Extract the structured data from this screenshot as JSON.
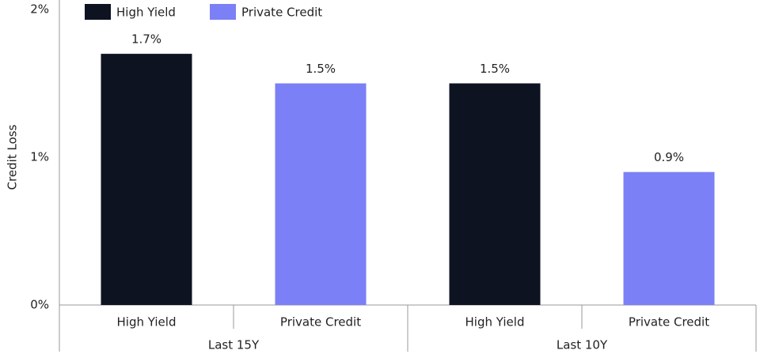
{
  "chart_data": {
    "type": "bar",
    "y_label": "Credit Loss",
    "categories": [
      "Last 15Y",
      "Last 10Y"
    ],
    "series": [
      {
        "name": "High Yield",
        "color": "#0e1322",
        "values": [
          1.7,
          1.5
        ],
        "value_labels": [
          "1.7%",
          "1.5%"
        ]
      },
      {
        "name": "Private Credit",
        "color": "#7b80f6",
        "values": [
          1.5,
          0.9
        ],
        "value_labels": [
          "1.5%",
          "0.9%"
        ]
      }
    ],
    "ylim": [
      0,
      2
    ],
    "yticks": [
      {
        "value": 0,
        "label": "0%"
      },
      {
        "value": 1,
        "label": "1%"
      },
      {
        "value": 2,
        "label": "2%"
      }
    ],
    "grid": false
  }
}
